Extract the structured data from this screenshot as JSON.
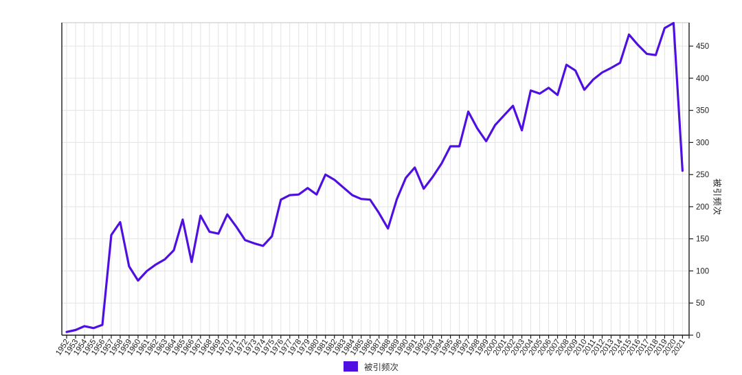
{
  "page": {
    "background": "#ffffff"
  },
  "legend": {
    "label": "被引频次"
  },
  "chart_data": {
    "type": "line",
    "title": "",
    "series_name": "被引频次",
    "xlabel": "",
    "ylabel": "被引频次",
    "x": [
      1952,
      1953,
      1954,
      1955,
      1956,
      1957,
      1958,
      1959,
      1960,
      1961,
      1962,
      1963,
      1964,
      1965,
      1966,
      1967,
      1968,
      1969,
      1970,
      1971,
      1972,
      1973,
      1974,
      1975,
      1976,
      1977,
      1978,
      1979,
      1980,
      1981,
      1982,
      1983,
      1984,
      1985,
      1986,
      1987,
      1988,
      1989,
      1990,
      1991,
      1992,
      1993,
      1994,
      1995,
      1996,
      1997,
      1998,
      1999,
      2000,
      2001,
      2002,
      2003,
      2004,
      2005,
      2006,
      2007,
      2008,
      2009,
      2010,
      2011,
      2012,
      2013,
      2014,
      2015,
      2016,
      2017,
      2018,
      2019,
      2020,
      2021
    ],
    "values": [
      5,
      8,
      14,
      11,
      16,
      156,
      176,
      107,
      85,
      100,
      110,
      118,
      132,
      180,
      114,
      186,
      161,
      158,
      188,
      169,
      148,
      143,
      139,
      154,
      211,
      218,
      219,
      229,
      219,
      250,
      242,
      230,
      218,
      212,
      211,
      190,
      166,
      212,
      245,
      261,
      228,
      246,
      267,
      294,
      294,
      348,
      322,
      302,
      327,
      342,
      357,
      319,
      381,
      376,
      385,
      374,
      421,
      412,
      382,
      398,
      409,
      416,
      424,
      468,
      452,
      438,
      436,
      478,
      486,
      256
    ],
    "ylim": [
      0,
      486.5
    ],
    "yticks": [
      0,
      50,
      100,
      150,
      200,
      250,
      300,
      350,
      400,
      450
    ],
    "grid": true,
    "legend_position": "bottom",
    "line_color": "#4E0FE0",
    "grid_color": "#e3e3e3",
    "axis_color": "#1a1a1a",
    "top_border_color": "#cfcfcf",
    "text_color": "#1c1c1c"
  }
}
